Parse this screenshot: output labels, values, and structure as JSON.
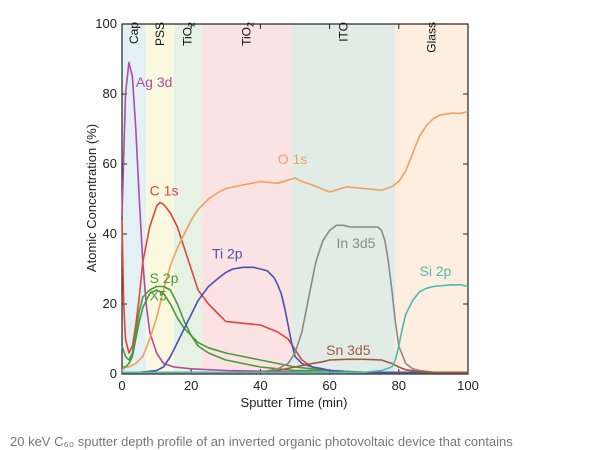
{
  "chart_data": {
    "type": "line",
    "xlabel": "Sputter Time (min)",
    "ylabel": "Atomic Concentration (%)",
    "xlim": [
      0,
      100
    ],
    "ylim": [
      0,
      100
    ],
    "xticks": [
      0,
      20,
      40,
      60,
      80,
      100
    ],
    "yticks": [
      0,
      20,
      40,
      60,
      80,
      100
    ],
    "grid": false,
    "layers": [
      {
        "label": "Cap",
        "from": 0,
        "to": 7,
        "color": "#e3f1f4"
      },
      {
        "label": "PSS",
        "from": 7,
        "to": 15,
        "color": "#fbf8e0"
      },
      {
        "label": "TiO2",
        "label_main": "TiO",
        "label_sub": "2",
        "from": 15,
        "to": 23,
        "color": "#e6f2e3"
      },
      {
        "label": "TiO2",
        "label_main": "TiO",
        "label_sub": "2",
        "from": 23,
        "to": 49,
        "color": "#fbe3e4"
      },
      {
        "label": "ITO",
        "from": 49,
        "to": 79,
        "color": "#e2ece6"
      },
      {
        "label": "Glass",
        "from": 79,
        "to": 100,
        "color": "#fdeee0"
      }
    ],
    "series": [
      {
        "name": "Ag 3d",
        "color": "#b04aa4",
        "x": [
          0,
          1,
          2,
          3,
          4,
          5,
          6,
          7,
          8,
          10,
          12,
          15,
          20,
          30,
          40,
          60,
          80,
          100
        ],
        "y": [
          45,
          80,
          89,
          85,
          70,
          50,
          32,
          20,
          12,
          6,
          3,
          2,
          1.5,
          1,
          0.8,
          0.5,
          0.5,
          0.5
        ],
        "label_x": 4,
        "label_y": 82
      },
      {
        "name": "C 1s",
        "color": "#e0453c",
        "x": [
          0,
          0.5,
          1,
          2,
          3,
          4,
          5,
          6,
          8,
          10,
          11,
          12,
          14,
          16,
          18,
          20,
          22,
          25,
          28,
          30,
          35,
          40,
          45,
          48,
          50,
          52,
          55,
          60,
          70,
          80,
          90,
          100
        ],
        "y": [
          44,
          20,
          10,
          6,
          8,
          14,
          22,
          32,
          42,
          48,
          49,
          48.5,
          46,
          42,
          36,
          30,
          24,
          20,
          17,
          15,
          14.5,
          14,
          12,
          10,
          7,
          4,
          2,
          1,
          0.5,
          0.5,
          0.5,
          0.5
        ],
        "label_x": 8,
        "label_y": 51
      },
      {
        "name": "O 1s",
        "color": "#f0a060",
        "x": [
          0,
          1,
          2,
          4,
          6,
          8,
          10,
          12,
          14,
          16,
          18,
          20,
          22,
          25,
          28,
          30,
          35,
          40,
          45,
          50,
          52,
          55,
          60,
          65,
          70,
          75,
          78,
          80,
          82,
          84,
          86,
          88,
          90,
          92,
          95,
          98,
          100
        ],
        "y": [
          1,
          2,
          2,
          3,
          5,
          10,
          16,
          24,
          31,
          36,
          40,
          44,
          47,
          50,
          52,
          53,
          54,
          55,
          54.5,
          56,
          55,
          54,
          52,
          53.5,
          53,
          52.5,
          53.5,
          55,
          58,
          63,
          68,
          71,
          73,
          74,
          74.5,
          74.5,
          75
        ],
        "label_x": 45,
        "label_y": 60
      },
      {
        "name": "S 2p",
        "color": "#4a9a3a",
        "x": [
          0,
          1,
          2,
          3,
          4,
          5,
          6,
          8,
          10,
          12,
          14,
          16,
          18,
          20,
          22,
          25,
          30,
          35,
          40,
          45,
          50,
          55,
          60,
          70,
          80,
          90,
          100
        ],
        "y": [
          2,
          2,
          3,
          5,
          10,
          15,
          19,
          23,
          24,
          23,
          20,
          16,
          13,
          11,
          9,
          7.5,
          6,
          5,
          4,
          3,
          2,
          1.5,
          1,
          0.5,
          0.5,
          0.5,
          0.5
        ],
        "label_x": 8,
        "label_y": 26
      },
      {
        "name": "X5",
        "color": "#4a9a3a",
        "x": [
          0,
          1,
          2,
          3,
          4,
          5,
          6,
          8,
          10,
          12,
          14,
          16,
          18,
          20,
          22,
          25,
          30,
          35,
          40,
          45,
          50,
          60,
          70,
          80,
          100
        ],
        "y": [
          8,
          5,
          4,
          6,
          12,
          18,
          22,
          24,
          25,
          25,
          24,
          20,
          15,
          11,
          8,
          6,
          4,
          3,
          2,
          1.5,
          1,
          1,
          0.5,
          0.5,
          0.5
        ],
        "label_x": 8,
        "label_y": 21
      },
      {
        "name": "Ti 2p",
        "color": "#4a50b8",
        "x": [
          0,
          5,
          10,
          12,
          14,
          16,
          18,
          20,
          22,
          25,
          28,
          30,
          32,
          35,
          38,
          40,
          42,
          44,
          45,
          46,
          47,
          48,
          49,
          50,
          52,
          55,
          58,
          60,
          65,
          70,
          80,
          100
        ],
        "y": [
          0.5,
          0.5,
          1,
          2,
          5,
          9,
          13,
          17,
          21,
          25,
          27.5,
          29,
          30,
          30.5,
          30.5,
          30,
          29.5,
          27.5,
          25.5,
          23,
          19,
          14,
          9,
          5,
          3,
          2,
          1.5,
          1,
          0.5,
          0.5,
          0.5,
          0.5
        ],
        "label_x": 26,
        "label_y": 33
      },
      {
        "name": "In 3d5",
        "color": "#8a8a8a",
        "x": [
          0,
          40,
          45,
          48,
          50,
          52,
          54,
          56,
          58,
          60,
          62,
          64,
          66,
          70,
          74,
          75,
          76,
          77,
          78,
          79,
          80,
          82,
          84,
          86,
          90,
          100
        ],
        "y": [
          0.5,
          0.5,
          1.5,
          3,
          6,
          12,
          22,
          32,
          38,
          41,
          42.5,
          42.5,
          42,
          42,
          42,
          41,
          38,
          32,
          24,
          15,
          8,
          3,
          1.5,
          1,
          0.5,
          0.5
        ],
        "label_x": 62,
        "label_y": 36
      },
      {
        "name": "Sn 3d5",
        "color": "#a05a3a",
        "x": [
          0,
          40,
          45,
          50,
          55,
          58,
          60,
          65,
          70,
          75,
          78,
          80,
          82,
          85,
          90,
          100
        ],
        "y": [
          0.5,
          0.5,
          1,
          2,
          3,
          3.5,
          4,
          4.2,
          4.2,
          4,
          3,
          2,
          1.2,
          0.8,
          0.5,
          0.5
        ],
        "label_x": 59,
        "label_y": 5.5
      },
      {
        "name": "Si 2p",
        "color": "#4fb8b0",
        "x": [
          0,
          70,
          75,
          78,
          79,
          80,
          81,
          82,
          84,
          86,
          88,
          90,
          95,
          98,
          100
        ],
        "y": [
          0.5,
          0.5,
          1,
          2,
          4,
          8,
          13,
          17,
          21,
          23.5,
          24.5,
          25,
          25.5,
          25.5,
          25
        ],
        "label_x": 86,
        "label_y": 28
      }
    ]
  },
  "caption": "20 keV C₆₀ sputter depth profile of an inverted organic photovoltaic device that contains"
}
